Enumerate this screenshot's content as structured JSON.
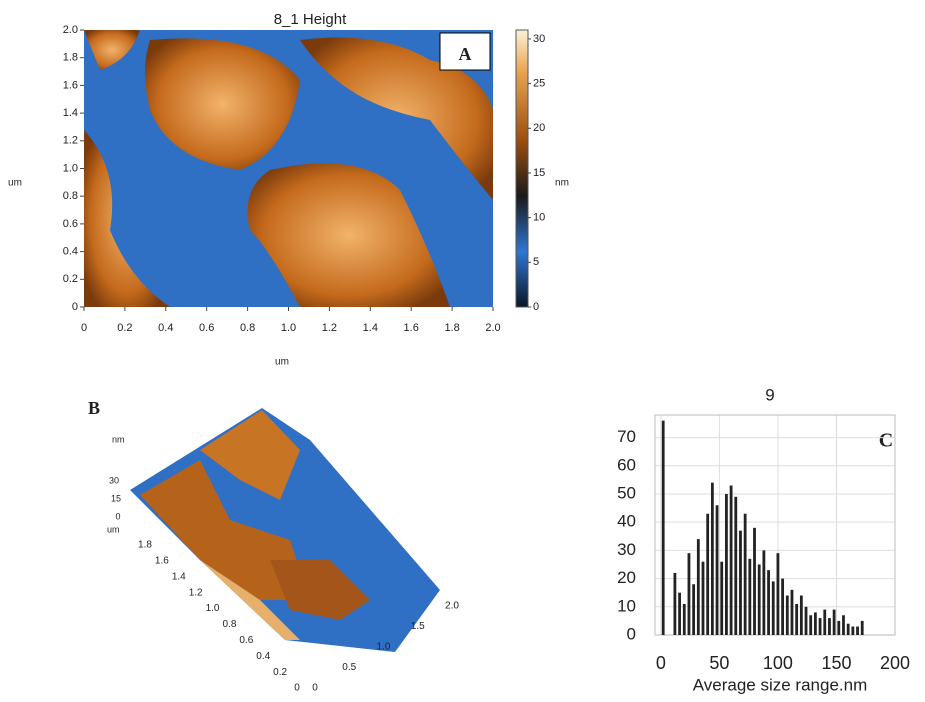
{
  "chart_data": [
    {
      "type": "heatmap",
      "title": "8_1 Height",
      "label": "A",
      "xlabel": "um",
      "ylabel": "um",
      "colorbar_label": "nm",
      "xlim": [
        0,
        2
      ],
      "xticks": [
        0,
        0.2,
        0.4,
        0.6,
        0.8,
        {
          "value": 1,
          "label": "1.0"
        },
        1.2,
        1.4,
        1.6,
        1.8,
        {
          "value": 2,
          "label": "2.0"
        }
      ],
      "ylim": [
        0,
        2
      ],
      "yticks": [
        0,
        0.2,
        0.4,
        0.6,
        0.8,
        {
          "value": 1,
          "label": "1.0"
        },
        1.2,
        1.4,
        1.6,
        1.8,
        {
          "value": 2,
          "label": "2.0"
        }
      ],
      "clim": [
        0,
        31
      ],
      "cticks": [
        0,
        5,
        10,
        15,
        20,
        25,
        30
      ]
    },
    {
      "type": "surface",
      "label": "B",
      "zlabel": "nm",
      "ylabel": "um",
      "zticks": [
        30,
        15,
        0
      ],
      "yticks": [
        1.8,
        1.6,
        1.4,
        1.2,
        {
          "value": 1,
          "label": "1.0"
        },
        0.8,
        0.6,
        0.4,
        0.2,
        0
      ],
      "xticks": [
        0,
        0.5,
        {
          "value": 1,
          "label": "1.0"
        },
        1.5,
        {
          "value": 2,
          "label": "2.0"
        }
      ]
    },
    {
      "type": "bar",
      "title": "9",
      "label": "C",
      "xlabel": "Average size range.nm",
      "color": "#222222",
      "grid": true,
      "xlim": [
        -5,
        200
      ],
      "xticks": [
        0,
        50,
        100,
        150,
        200
      ],
      "ylim": [
        0,
        78
      ],
      "yticks": [
        0,
        10,
        20,
        30,
        40,
        50,
        60,
        70
      ],
      "x": [
        2,
        12,
        16,
        20,
        24,
        28,
        32,
        36,
        40,
        44,
        48,
        52,
        56,
        60,
        64,
        68,
        72,
        76,
        80,
        84,
        88,
        92,
        96,
        100,
        104,
        108,
        112,
        116,
        120,
        124,
        128,
        132,
        136,
        140,
        144,
        148,
        152,
        156,
        160,
        164,
        168,
        172
      ],
      "values": [
        76,
        22,
        15,
        11,
        29,
        18,
        34,
        26,
        43,
        54,
        46,
        26,
        50,
        53,
        49,
        37,
        43,
        27,
        38,
        25,
        30,
        23,
        19,
        29,
        20,
        14,
        16,
        11,
        14,
        10,
        7,
        8,
        6,
        9,
        6,
        9,
        5,
        7,
        4,
        3,
        3,
        5
      ]
    }
  ]
}
